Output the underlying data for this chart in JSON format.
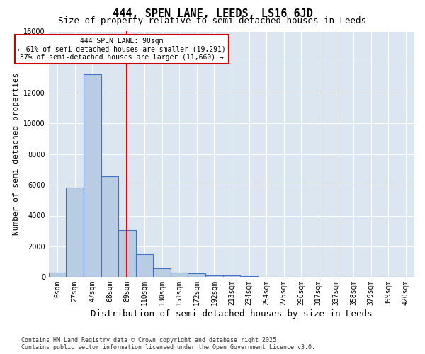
{
  "title": "444, SPEN LANE, LEEDS, LS16 6JD",
  "subtitle": "Size of property relative to semi-detached houses in Leeds",
  "xlabel": "Distribution of semi-detached houses by size in Leeds",
  "ylabel": "Number of semi-detached properties",
  "bin_labels": [
    "6sqm",
    "27sqm",
    "47sqm",
    "68sqm",
    "89sqm",
    "110sqm",
    "130sqm",
    "151sqm",
    "172sqm",
    "192sqm",
    "213sqm",
    "234sqm",
    "254sqm",
    "275sqm",
    "296sqm",
    "317sqm",
    "337sqm",
    "358sqm",
    "379sqm",
    "399sqm",
    "420sqm"
  ],
  "bar_values": [
    270,
    5800,
    13200,
    6550,
    3050,
    1500,
    580,
    300,
    230,
    130,
    90,
    50,
    30,
    15,
    10,
    5,
    3,
    2,
    1,
    1,
    0
  ],
  "bar_color": "#b8cce4",
  "bar_edge_color": "#4472c4",
  "background_color": "#dce6f1",
  "property_size": 90,
  "red_line_x": 4,
  "annotation_text": "444 SPEN LANE: 90sqm\n← 61% of semi-detached houses are smaller (19,291)\n37% of semi-detached houses are larger (11,660) →",
  "annotation_box_color": "#ffffff",
  "annotation_box_edge": "#cc0000",
  "ylim": [
    0,
    16000
  ],
  "yticks": [
    0,
    2000,
    4000,
    6000,
    8000,
    10000,
    12000,
    14000,
    16000
  ],
  "footer_line1": "Contains HM Land Registry data © Crown copyright and database right 2025.",
  "footer_line2": "Contains public sector information licensed under the Open Government Licence v3.0.",
  "title_fontsize": 11,
  "subtitle_fontsize": 9,
  "tick_fontsize": 7,
  "ylabel_fontsize": 8,
  "xlabel_fontsize": 9
}
